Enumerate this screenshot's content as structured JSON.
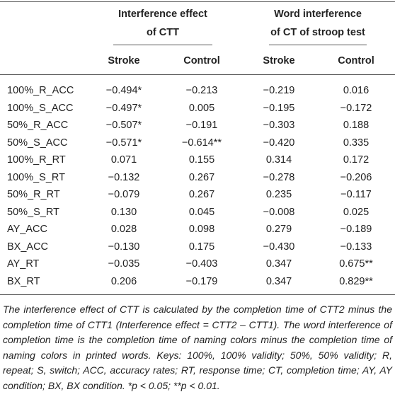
{
  "header": {
    "groups": [
      "Interference effect of CTT",
      "Word interference of CT of stroop test"
    ],
    "subheaders": [
      "Stroke",
      "Control",
      "Stroke",
      "Control"
    ]
  },
  "table": {
    "rows": [
      [
        "100%_R_ACC",
        "−0.494*",
        "−0.213",
        "−0.219",
        "0.016"
      ],
      [
        "100%_S_ACC",
        "−0.497*",
        "0.005",
        "−0.195",
        "−0.172"
      ],
      [
        "50%_R_ACC",
        "−0.507*",
        "−0.191",
        "−0.303",
        "0.188"
      ],
      [
        "50%_S_ACC",
        "−0.571*",
        "−0.614**",
        "−0.420",
        "0.335"
      ],
      [
        "100%_R_RT",
        "0.071",
        "0.155",
        "0.314",
        "0.172"
      ],
      [
        "100%_S_RT",
        "−0.132",
        "0.267",
        "−0.278",
        "−0.206"
      ],
      [
        "50%_R_RT",
        "−0.079",
        "0.267",
        "0.235",
        "−0.117"
      ],
      [
        "50%_S_RT",
        "0.130",
        "0.045",
        "−0.008",
        "0.025"
      ],
      [
        "AY_ACC",
        "0.028",
        "0.098",
        "0.279",
        "−0.189"
      ],
      [
        "BX_ACC",
        "−0.130",
        "0.175",
        "−0.430",
        "−0.133"
      ],
      [
        "AY_RT",
        "−0.035",
        "−0.403",
        "0.347",
        "0.675**"
      ],
      [
        "BX_RT",
        "0.206",
        "−0.179",
        "0.347",
        "0.829**"
      ]
    ]
  },
  "note": "The interference effect of CTT is calculated by the completion time of CTT2 minus the completion time of CTT1 (Interference effect = CTT2 – CTT1). The word interference of completion time is the completion time of naming colors minus the completion time of naming colors in printed words. Keys: 100%, 100% validity; 50%, 50% validity; R, repeat; S, switch; ACC, accuracy rates; RT, response time; CT, completion time; AY, AY condition; BX, BX condition. *p < 0.05; **p < 0.01."
}
